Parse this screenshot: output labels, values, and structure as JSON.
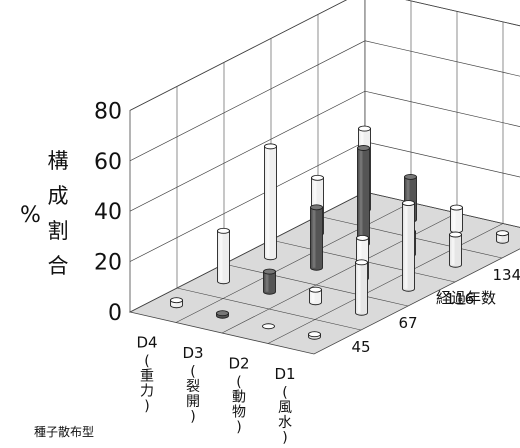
{
  "chart_data": {
    "type": "bar",
    "style": "3d-cylinder",
    "ylabel": "%",
    "ylabel_vertical": "構成割合",
    "yticks": [
      0,
      20,
      40,
      60,
      80
    ],
    "ylim": [
      0,
      80
    ],
    "xlabel": "種子散布型",
    "categories": [
      "D4",
      "D3",
      "D2",
      "D1"
    ],
    "category_notes": [
      "重力",
      "裂開",
      "動物",
      "風水"
    ],
    "depth_label": "経過年数",
    "depth_categories": [
      "45",
      "67",
      "116",
      "134",
      "対照"
    ],
    "grid": true,
    "series": [
      {
        "name": "45",
        "values": [
          2,
          1,
          0,
          1
        ]
      },
      {
        "name": "67",
        "values": [
          20,
          8,
          5,
          20
        ]
      },
      {
        "name": "116",
        "values": [
          44,
          24,
          16,
          34
        ]
      },
      {
        "name": "134",
        "values": [
          22,
          38,
          9,
          12
        ]
      },
      {
        "name": "対照",
        "values": [
          32,
          17,
          9,
          3
        ]
      }
    ],
    "colors": {
      "D4": "#eeeeee",
      "D3": "#555555",
      "D2": "#f2f2f2",
      "D1": "#e6e6e6",
      "floor": "#dadada",
      "wall": "#ffffff",
      "grid": "#444444"
    }
  }
}
